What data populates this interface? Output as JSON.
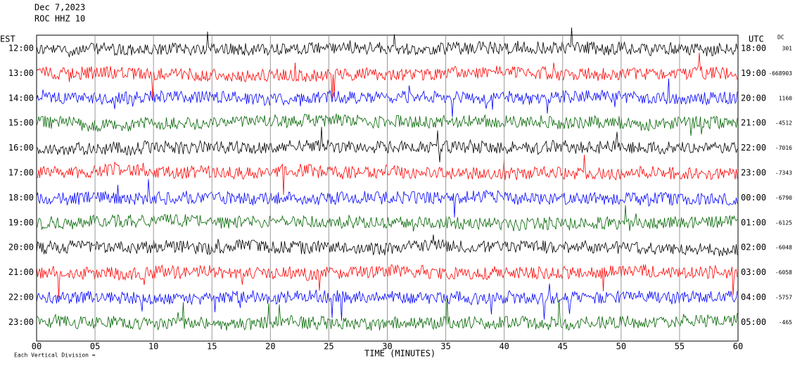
{
  "header": {
    "date": "Dec 7,2023",
    "station": "ROC HHZ 10"
  },
  "left_axis": {
    "title": "EST",
    "labels": [
      "12:00",
      "13:00",
      "14:00",
      "15:00",
      "16:00",
      "17:00",
      "18:00",
      "19:00",
      "20:00",
      "21:00",
      "22:00",
      "23:00"
    ]
  },
  "right_axis": {
    "title": "UTC",
    "labels": [
      "18:00",
      "19:00",
      "20:00",
      "21:00",
      "22:00",
      "23:00",
      "00:00",
      "01:00",
      "02:00",
      "03:00",
      "04:00",
      "05:00"
    ]
  },
  "dc": {
    "title": "DC",
    "values": [
      "301",
      "-668903",
      "1160",
      "-4512",
      "-7016",
      "-7343",
      "-6790",
      "-6125",
      "-6048",
      "-6058",
      "-5757",
      "-465"
    ]
  },
  "x_axis": {
    "title": "TIME (MINUTES)",
    "labels": [
      "00",
      "05",
      "10",
      "15",
      "20",
      "25",
      "30",
      "35",
      "40",
      "45",
      "50",
      "55",
      "60"
    ]
  },
  "footer": {
    "note": "Each Vertical Division ="
  },
  "trace_colors": [
    "#000000",
    "#ff0000",
    "#0000ff",
    "#006400"
  ]
}
